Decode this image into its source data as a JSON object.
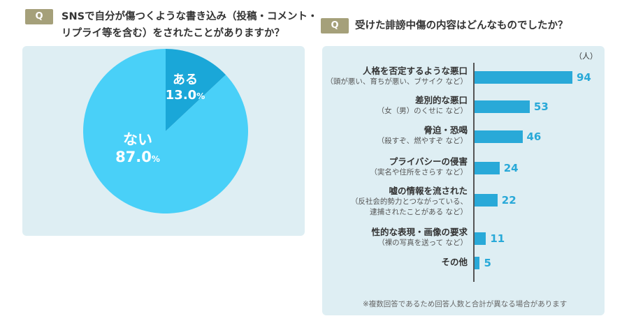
{
  "q1": {
    "badge": "Q",
    "line1": "SNSで自分が傷つくような書き込み（投稿・コメント・",
    "line2": "リプライ等を含む）をされたことがありますか？"
  },
  "q2": {
    "badge": "Q",
    "title": "受けた誹謗中傷の内容はどんなものでしたか？"
  },
  "chart_data": [
    {
      "type": "pie",
      "slices": [
        {
          "label": "ある",
          "value": 13.0,
          "display": "13.0",
          "unit": "%"
        },
        {
          "label": "ない",
          "value": 87.0,
          "display": "87.0",
          "unit": "%"
        }
      ],
      "colors": {
        "ある": "#1aa7d8",
        "ない": "#49d0f8"
      }
    },
    {
      "type": "bar",
      "orientation": "horizontal",
      "unit": "（人）",
      "categories": [
        {
          "label": "人格を否定するような悪口",
          "sub": [
            "（頭が悪い、育ちが悪い、ブサイク など）"
          ]
        },
        {
          "label": "差別的な悪口",
          "sub": [
            "（女（男）のくせに など）"
          ]
        },
        {
          "label": "脅迫・恐喝",
          "sub": [
            "（殺すぞ、燃やすぞ など）"
          ]
        },
        {
          "label": "プライバシーの侵害",
          "sub": [
            "（実名や住所をさらす など）"
          ]
        },
        {
          "label": "嘘の情報を流された",
          "sub": [
            "（反社会的勢力とつながっている、",
            "逮捕されたことがある など）"
          ]
        },
        {
          "label": "性的な表現・画像の要求",
          "sub": [
            "（裸の写真を送って など）"
          ]
        },
        {
          "label": "その他",
          "sub": []
        }
      ],
      "values": [
        94,
        53,
        46,
        24,
        22,
        11,
        5
      ],
      "xlim": [
        0,
        94
      ],
      "bar_color": "#29a9d8",
      "footnote": "※複数回答であるため回答人数と合計が異なる場合があります"
    }
  ]
}
